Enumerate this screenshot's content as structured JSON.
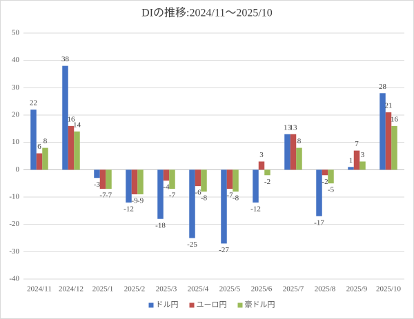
{
  "chart_data": {
    "type": "bar",
    "title": "DIの推移:2024/11～2025/10",
    "categories": [
      "2024/11",
      "2024/12",
      "2025/1",
      "2025/2",
      "2025/3",
      "2025/4",
      "2025/5",
      "2025/6",
      "2025/7",
      "2025/8",
      "2025/9",
      "2025/10"
    ],
    "series": [
      {
        "name": "ドル円",
        "color": "#4472c4",
        "values": [
          22,
          38,
          -3,
          -12,
          -18,
          -25,
          -27,
          -12,
          13,
          -17,
          1,
          28
        ]
      },
      {
        "name": "ユーロ円",
        "color": "#c0504d",
        "values": [
          6,
          16,
          -7,
          -9,
          -4,
          -6,
          -7,
          3,
          13,
          -2,
          7,
          21
        ]
      },
      {
        "name": "豪ドル円",
        "color": "#9bbb59",
        "values": [
          8,
          14,
          -7,
          -9,
          -7,
          -8,
          -8,
          -2,
          8,
          -5,
          3,
          16
        ]
      }
    ],
    "ylim": [
      -40,
      50
    ],
    "yticks": [
      -40,
      -30,
      -20,
      -10,
      0,
      10,
      20,
      30,
      40,
      50
    ],
    "grid": true,
    "legend": "bottom"
  }
}
